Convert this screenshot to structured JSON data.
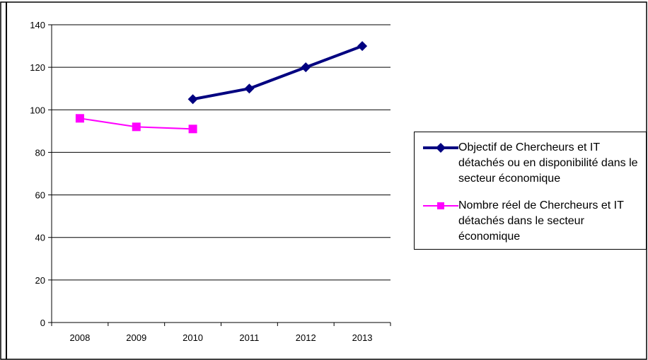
{
  "chart_data": {
    "type": "line",
    "categories": [
      "2008",
      "2009",
      "2010",
      "2011",
      "2012",
      "2013"
    ],
    "ylim": [
      0,
      140
    ],
    "yticks": [
      0,
      20,
      40,
      60,
      80,
      100,
      120,
      140
    ],
    "grid": true,
    "legend_position": "right",
    "series": [
      {
        "name": "Objectif de Chercheurs et IT détachés ou en disponibilité dans le secteur économique",
        "values": [
          null,
          null,
          105,
          110,
          120,
          130
        ],
        "color": "#000080",
        "marker": "diamond"
      },
      {
        "name": "Nombre réel de Chercheurs et IT détachés dans le secteur économique",
        "values": [
          96,
          92,
          91,
          null,
          null,
          null
        ],
        "color": "#ff00ff",
        "marker": "square"
      }
    ]
  }
}
